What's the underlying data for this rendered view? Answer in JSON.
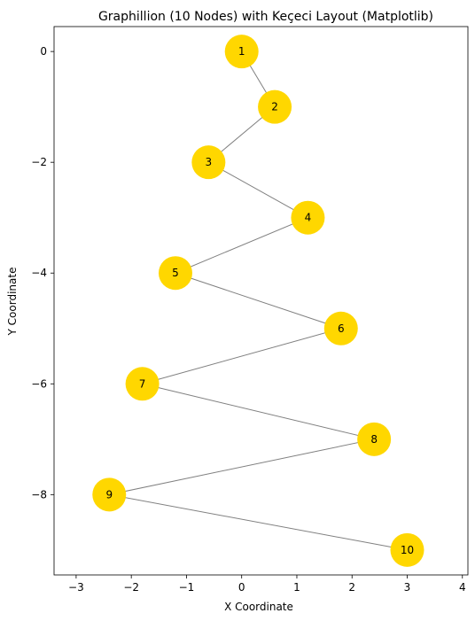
{
  "chart_data": {
    "type": "scatter",
    "title": "Graphillion (10 Nodes) with Keçeci Layout (Matplotlib)",
    "xlabel": "X Coordinate",
    "ylabel": "Y Coordinate",
    "xlim": [
      -3.4,
      4.1
    ],
    "ylim": [
      -9.45,
      0.45
    ],
    "xticks": [
      -3,
      -2,
      -1,
      0,
      1,
      2,
      3,
      4
    ],
    "xtick_labels": [
      "−3",
      "−2",
      "−1",
      "0",
      "1",
      "2",
      "3",
      "4"
    ],
    "yticks": [
      0,
      -2,
      -4,
      -6,
      -8
    ],
    "ytick_labels": [
      "0",
      "−2",
      "−4",
      "−6",
      "−8"
    ],
    "grid": false,
    "node_color": "#FFD700",
    "edge_color": "#808080",
    "nodes": [
      {
        "label": "1",
        "x": 0.0,
        "y": 0
      },
      {
        "label": "2",
        "x": 0.6,
        "y": -1
      },
      {
        "label": "3",
        "x": -0.6,
        "y": -2
      },
      {
        "label": "4",
        "x": 1.2,
        "y": -3
      },
      {
        "label": "5",
        "x": -1.2,
        "y": -4
      },
      {
        "label": "6",
        "x": 1.8,
        "y": -5
      },
      {
        "label": "7",
        "x": -1.8,
        "y": -6
      },
      {
        "label": "8",
        "x": 2.4,
        "y": -7
      },
      {
        "label": "9",
        "x": -2.4,
        "y": -8
      },
      {
        "label": "10",
        "x": 3.0,
        "y": -9
      }
    ],
    "edges": [
      [
        0,
        1
      ],
      [
        1,
        2
      ],
      [
        2,
        3
      ],
      [
        3,
        4
      ],
      [
        4,
        5
      ],
      [
        5,
        6
      ],
      [
        6,
        7
      ],
      [
        7,
        8
      ],
      [
        8,
        9
      ]
    ]
  }
}
